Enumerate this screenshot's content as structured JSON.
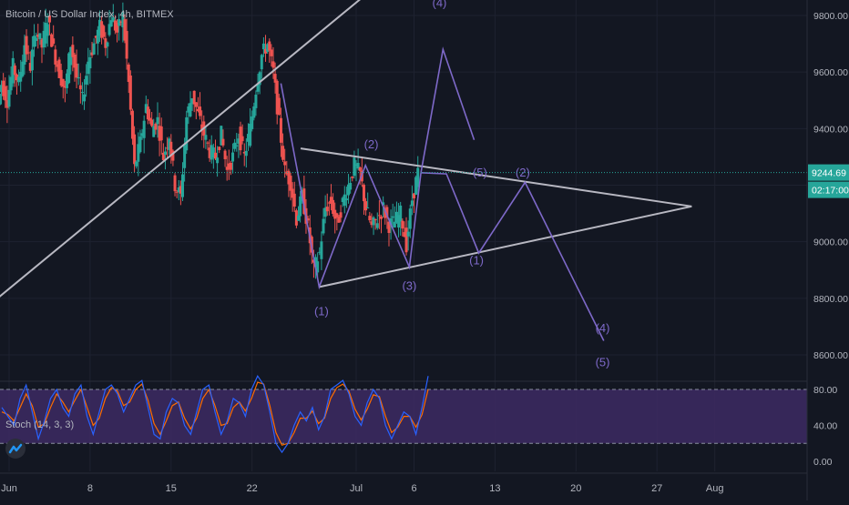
{
  "chart_data": {
    "type": "candlestick",
    "title": "Bitcoin / US Dollar Index, 4h, BITMEX",
    "symbol": "Bitcoin / US Dollar Index",
    "interval": "4h",
    "exchange": "BITMEX",
    "price_axis": {
      "min": 8450,
      "max": 9880,
      "ticks": [
        8600,
        8800,
        9000,
        9200,
        9400,
        9600,
        9800
      ],
      "tick_labels": [
        "8600.00",
        "8800.00",
        "9000.00",
        "9200.00",
        "9400.00",
        "9600.00",
        "9800.00"
      ]
    },
    "time_axis": {
      "ticks": [
        {
          "day": 1,
          "label": "Jun"
        },
        {
          "day": 8,
          "label": "8"
        },
        {
          "day": 15,
          "label": "15"
        },
        {
          "day": 22,
          "label": "22"
        },
        {
          "day": 31,
          "label": "Jul"
        },
        {
          "day": 36,
          "label": "6"
        },
        {
          "day": 43,
          "label": "13"
        },
        {
          "day": 50,
          "label": "20"
        },
        {
          "day": 57,
          "label": "27"
        },
        {
          "day": 62,
          "label": "Aug"
        }
      ]
    },
    "last_price": {
      "value": 9244.69,
      "label": "9244.69",
      "countdown": "02:17:00"
    },
    "price_series": [
      {
        "day": 0.0,
        "price": 9450
      },
      {
        "day": 0.5,
        "price": 9560
      },
      {
        "day": 1.0,
        "price": 9500
      },
      {
        "day": 1.5,
        "price": 9620
      },
      {
        "day": 2.0,
        "price": 9560
      },
      {
        "day": 2.5,
        "price": 9700
      },
      {
        "day": 3.0,
        "price": 9620
      },
      {
        "day": 3.5,
        "price": 9750
      },
      {
        "day": 4.0,
        "price": 9690
      },
      {
        "day": 4.5,
        "price": 9790
      },
      {
        "day": 5.0,
        "price": 9680
      },
      {
        "day": 5.5,
        "price": 9600
      },
      {
        "day": 6.0,
        "price": 9530
      },
      {
        "day": 6.5,
        "price": 9700
      },
      {
        "day": 7.0,
        "price": 9580
      },
      {
        "day": 7.5,
        "price": 9500
      },
      {
        "day": 8.0,
        "price": 9640
      },
      {
        "day": 8.5,
        "price": 9700
      },
      {
        "day": 9.0,
        "price": 9760
      },
      {
        "day": 9.5,
        "price": 9700
      },
      {
        "day": 10.0,
        "price": 9800
      },
      {
        "day": 10.5,
        "price": 9740
      },
      {
        "day": 11.0,
        "price": 9800
      },
      {
        "day": 11.5,
        "price": 9560
      },
      {
        "day": 12.0,
        "price": 9260
      },
      {
        "day": 12.5,
        "price": 9350
      },
      {
        "day": 13.0,
        "price": 9480
      },
      {
        "day": 13.5,
        "price": 9400
      },
      {
        "day": 14.0,
        "price": 9430
      },
      {
        "day": 14.5,
        "price": 9300
      },
      {
        "day": 15.0,
        "price": 9380
      },
      {
        "day": 15.5,
        "price": 9200
      },
      {
        "day": 16.0,
        "price": 9160
      },
      {
        "day": 16.5,
        "price": 9440
      },
      {
        "day": 17.0,
        "price": 9520
      },
      {
        "day": 17.5,
        "price": 9450
      },
      {
        "day": 18.0,
        "price": 9380
      },
      {
        "day": 18.5,
        "price": 9320
      },
      {
        "day": 19.0,
        "price": 9300
      },
      {
        "day": 19.5,
        "price": 9380
      },
      {
        "day": 20.0,
        "price": 9250
      },
      {
        "day": 20.5,
        "price": 9300
      },
      {
        "day": 21.0,
        "price": 9380
      },
      {
        "day": 21.5,
        "price": 9300
      },
      {
        "day": 22.0,
        "price": 9400
      },
      {
        "day": 22.5,
        "price": 9540
      },
      {
        "day": 23.0,
        "price": 9660
      },
      {
        "day": 23.5,
        "price": 9700
      },
      {
        "day": 24.0,
        "price": 9600
      },
      {
        "day": 24.5,
        "price": 9420
      },
      {
        "day": 25.0,
        "price": 9250
      },
      {
        "day": 25.5,
        "price": 9210
      },
      {
        "day": 26.0,
        "price": 9080
      },
      {
        "day": 26.5,
        "price": 9160
      },
      {
        "day": 27.0,
        "price": 9050
      },
      {
        "day": 27.5,
        "price": 8900
      },
      {
        "day": 28.0,
        "price": 8960
      },
      {
        "day": 28.5,
        "price": 9120
      },
      {
        "day": 29.0,
        "price": 9140
      },
      {
        "day": 29.5,
        "price": 9060
      },
      {
        "day": 30.0,
        "price": 9140
      },
      {
        "day": 30.5,
        "price": 9200
      },
      {
        "day": 31.0,
        "price": 9270
      },
      {
        "day": 31.5,
        "price": 9240
      },
      {
        "day": 32.0,
        "price": 9120
      },
      {
        "day": 32.5,
        "price": 9050
      },
      {
        "day": 33.0,
        "price": 9080
      },
      {
        "day": 33.5,
        "price": 9120
      },
      {
        "day": 34.0,
        "price": 9060
      },
      {
        "day": 34.5,
        "price": 9070
      },
      {
        "day": 35.0,
        "price": 9100
      },
      {
        "day": 35.5,
        "price": 8990
      },
      {
        "day": 36.0,
        "price": 9150
      },
      {
        "day": 36.5,
        "price": 9245
      }
    ],
    "projection": {
      "wave_path": [
        {
          "day": 36.6,
          "price": 9244,
          "label": ""
        },
        {
          "day": 38.5,
          "price": 9680,
          "label": "(4)"
        },
        {
          "day": 41.2,
          "price": 9360,
          "label": ""
        }
      ],
      "wave_path2": [
        {
          "day": 36.6,
          "price": 9244,
          "label": ""
        },
        {
          "day": 38.8,
          "price": 9240,
          "label": "(5)"
        },
        {
          "day": 41.6,
          "price": 8960,
          "label": "(1)"
        },
        {
          "day": 45.6,
          "price": 9210,
          "label": "(2)"
        },
        {
          "day": 52.4,
          "price": 8650,
          "label": "(4)"
        }
      ]
    },
    "annotations": [
      {
        "text": "(1)",
        "day": 28.0,
        "price": 8740
      },
      {
        "text": "(2)",
        "day": 32.3,
        "price": 9330
      },
      {
        "text": "(3)",
        "day": 35.6,
        "price": 8830
      },
      {
        "text": "(4)",
        "day": 38.2,
        "price": 9830
      },
      {
        "text": "(5)",
        "day": 41.7,
        "price": 9230
      },
      {
        "text": "(2)",
        "day": 45.4,
        "price": 9230
      },
      {
        "text": "(1)",
        "day": 41.4,
        "price": 8920
      },
      {
        "text": "(4)",
        "day": 52.3,
        "price": 8680
      },
      {
        "text": "(5)",
        "day": 52.3,
        "price": 8560
      }
    ],
    "trendlines": [
      {
        "from": {
          "day": 0.0,
          "price": 8800
        },
        "to": {
          "day": 33.5,
          "price": 9930
        }
      },
      {
        "from": {
          "day": 26.2,
          "price": 9330
        },
        "to": {
          "day": 60.0,
          "price": 9125
        }
      },
      {
        "from": {
          "day": 27.8,
          "price": 8840
        },
        "to": {
          "day": 60.0,
          "price": 9125
        }
      }
    ],
    "wave_path_main": [
      {
        "day": 24.5,
        "price": 9560
      },
      {
        "day": 27.8,
        "price": 8840
      },
      {
        "day": 31.8,
        "price": 9270
      },
      {
        "day": 35.6,
        "price": 8910
      },
      {
        "day": 36.6,
        "price": 9244
      }
    ],
    "stochastic": {
      "title": "Stoch (14, 3, 3)",
      "levels": [
        0,
        40,
        80
      ],
      "level_labels": [
        "0.00",
        "40.00",
        "80.00"
      ],
      "overbought": 80,
      "oversold": 20,
      "k": [
        60,
        50,
        40,
        70,
        85,
        55,
        25,
        45,
        70,
        80,
        60,
        50,
        75,
        85,
        50,
        30,
        55,
        80,
        85,
        75,
        55,
        70,
        85,
        90,
        60,
        30,
        25,
        55,
        70,
        65,
        40,
        30,
        55,
        80,
        85,
        55,
        30,
        45,
        70,
        65,
        50,
        80,
        95,
        85,
        55,
        20,
        10,
        20,
        40,
        55,
        45,
        60,
        35,
        50,
        80,
        85,
        90,
        75,
        50,
        40,
        65,
        80,
        70,
        40,
        25,
        40,
        55,
        50,
        30,
        60,
        95
      ],
      "d": [
        55,
        52,
        45,
        60,
        75,
        62,
        38,
        42,
        60,
        75,
        66,
        55,
        68,
        80,
        60,
        40,
        48,
        70,
        82,
        78,
        62,
        66,
        80,
        86,
        68,
        42,
        30,
        45,
        62,
        66,
        48,
        36,
        48,
        70,
        80,
        62,
        40,
        42,
        60,
        66,
        56,
        70,
        88,
        86,
        62,
        32,
        18,
        20,
        32,
        48,
        48,
        56,
        42,
        48,
        70,
        82,
        86,
        78,
        58,
        46,
        58,
        74,
        72,
        50,
        32,
        38,
        50,
        50,
        38,
        52,
        80
      ]
    },
    "colors": {
      "background": "#131722",
      "up": "#26a69a",
      "down": "#ef5350",
      "wave": "#7e69c9",
      "trendline": "#b8b8c2",
      "stoch_band": "#3d2a63",
      "k_line": "#2962ff",
      "d_line": "#ff6d00",
      "last_price_bg": "#26a69a",
      "axis_text": "#b2b5be"
    }
  }
}
